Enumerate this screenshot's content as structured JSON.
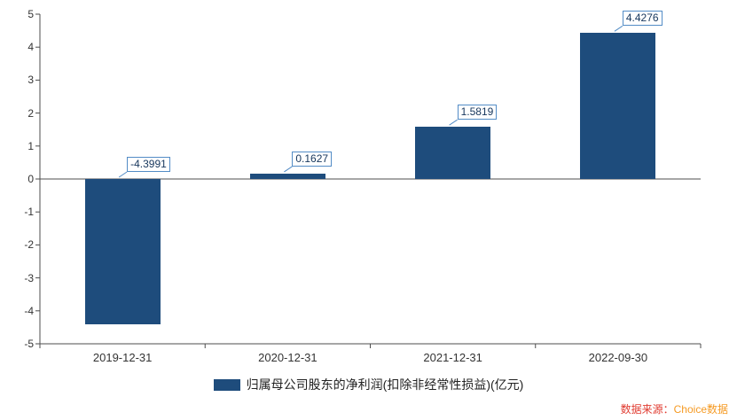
{
  "chart_data": {
    "type": "bar",
    "title": "",
    "xlabel": "",
    "ylabel": "",
    "categories": [
      "2019-12-31",
      "2020-12-31",
      "2021-12-31",
      "2022-09-30"
    ],
    "values": [
      -4.3991,
      0.1627,
      1.5819,
      4.4276
    ],
    "data_labels": [
      "-4.3991",
      "0.1627",
      "1.5819",
      "4.4276"
    ],
    "ylim": [
      -5,
      5
    ],
    "yticks": [
      5,
      4,
      3,
      2,
      1,
      0,
      -1,
      -2,
      -3,
      -4,
      -5
    ],
    "grid": false,
    "legend": [
      "归属母公司股东的净利润(扣除非经常性损益)(亿元)"
    ],
    "legend_position": "bottom",
    "bar_color": "#1e4c7c"
  },
  "colors": {
    "bar": "#1e4c7c",
    "callout_border": "#538cc6",
    "callout_text": "#16365c",
    "axis": "#4d4d4d",
    "source_prefix": "#e03a2f",
    "source_name": "#f59a23"
  },
  "footer": {
    "source_prefix": "数据来源：",
    "source_name": "Choice数据"
  }
}
